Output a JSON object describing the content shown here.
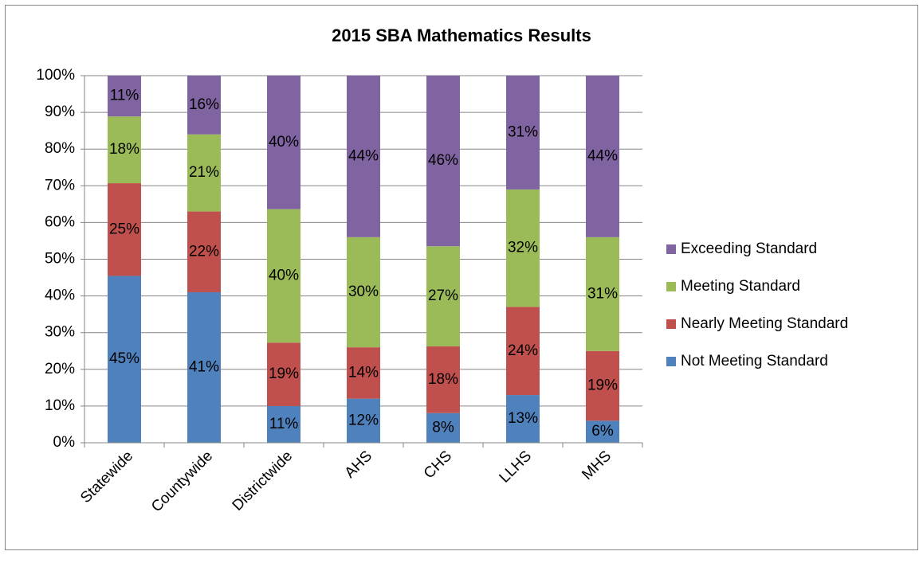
{
  "chart_data": {
    "type": "bar",
    "stacking": "percent",
    "title": "2015 SBA Mathematics Results",
    "categories": [
      "Statewide",
      "Countywide",
      "Districtwide",
      "AHS",
      "CHS",
      "LLHS",
      "MHS"
    ],
    "series": [
      {
        "name": "Not Meeting Standard",
        "color": "#4f81bd",
        "values": [
          45,
          41,
          11,
          12,
          8,
          13,
          6
        ],
        "value_labels": [
          "45%",
          "41%",
          "11%",
          "12%",
          "8%",
          "13%",
          "6%"
        ]
      },
      {
        "name": "Nearly Meeting Standard",
        "color": "#c0504d",
        "values": [
          25,
          22,
          19,
          14,
          18,
          24,
          19
        ],
        "value_labels": [
          "25%",
          "22%",
          "19%",
          "14%",
          "18%",
          "24%",
          "19%"
        ]
      },
      {
        "name": "Meeting Standard",
        "color": "#9bbb59",
        "values": [
          18,
          21,
          40,
          30,
          27,
          32,
          31
        ],
        "value_labels": [
          "18%",
          "21%",
          "40%",
          "30%",
          "27%",
          "32%",
          "31%"
        ]
      },
      {
        "name": "Exceeding Standard",
        "color": "#8064a2",
        "values": [
          11,
          16,
          40,
          44,
          46,
          31,
          44
        ],
        "value_labels": [
          "11%",
          "16%",
          "40%",
          "44%",
          "46%",
          "31%",
          "44%"
        ]
      }
    ],
    "ylim": [
      0,
      100
    ],
    "yticks": [
      {
        "value": 0,
        "label": "0%"
      },
      {
        "value": 10,
        "label": "10%"
      },
      {
        "value": 20,
        "label": "20%"
      },
      {
        "value": 30,
        "label": "30%"
      },
      {
        "value": 40,
        "label": "40%"
      },
      {
        "value": 50,
        "label": "50%"
      },
      {
        "value": 60,
        "label": "60%"
      },
      {
        "value": 70,
        "label": "70%"
      },
      {
        "value": 80,
        "label": "80%"
      },
      {
        "value": 90,
        "label": "90%"
      },
      {
        "value": 100,
        "label": "100%"
      }
    ],
    "grid": true,
    "legend": "right"
  }
}
